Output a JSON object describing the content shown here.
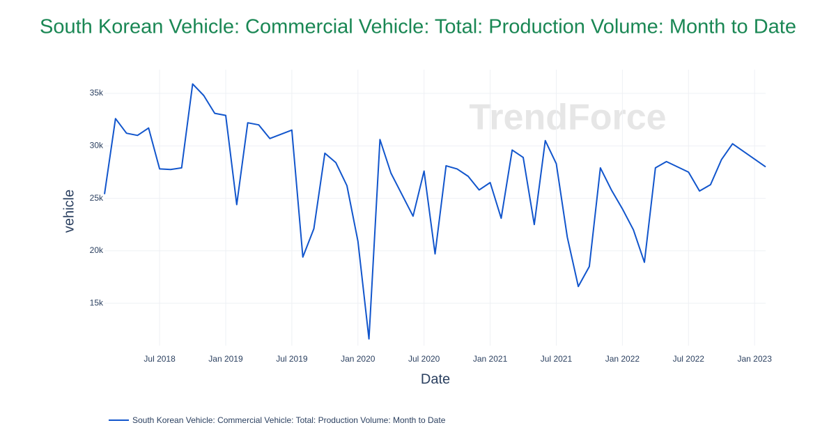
{
  "chart_data": {
    "type": "line",
    "title": "South Korean Vehicle: Commercial Vehicle: Total: Production Volume: Month to Date",
    "x_label": "Date",
    "y_label": "vehicle",
    "watermark": "TrendForce",
    "x": [
      "2018-02",
      "2018-03",
      "2018-04",
      "2018-05",
      "2018-06",
      "2018-07",
      "2018-08",
      "2018-09",
      "2018-10",
      "2018-11",
      "2018-12",
      "2019-01",
      "2019-02",
      "2019-03",
      "2019-04",
      "2019-05",
      "2019-07",
      "2019-08",
      "2019-09",
      "2019-10",
      "2019-11",
      "2019-12",
      "2020-01",
      "2020-02",
      "2020-03",
      "2020-04",
      "2020-06",
      "2020-07",
      "2020-08",
      "2020-09",
      "2020-10",
      "2020-11",
      "2020-12",
      "2021-01",
      "2021-02",
      "2021-03",
      "2021-04",
      "2021-05",
      "2021-06",
      "2021-07",
      "2021-08",
      "2021-09",
      "2021-10",
      "2021-11",
      "2021-12",
      "2022-01",
      "2022-02",
      "2022-03",
      "2022-04",
      "2022-05",
      "2022-07",
      "2022-08",
      "2022-09",
      "2022-10",
      "2022-11",
      "2023-02"
    ],
    "series": [
      {
        "name": "South Korean Vehicle: Commercial Vehicle: Total: Production Volume: Month to Date",
        "color": "#1155cc",
        "values": [
          25400,
          32600,
          31200,
          31000,
          31700,
          27800,
          27750,
          27900,
          35900,
          34800,
          33100,
          32900,
          24400,
          32200,
          32000,
          30700,
          31500,
          19400,
          22100,
          29300,
          28400,
          26200,
          20900,
          11600,
          30600,
          27400,
          23300,
          27600,
          19700,
          28100,
          27800,
          27100,
          25800,
          26500,
          23100,
          29600,
          28900,
          22500,
          30500,
          28300,
          21300,
          16600,
          18500,
          27900,
          25800,
          24000,
          22000,
          18900,
          27900,
          28500,
          27500,
          25700,
          26300,
          28700,
          30200,
          28000
        ]
      }
    ],
    "xlim": [
      "2018-02",
      "2023-02"
    ],
    "xticks": [
      {
        "value": "2018-07",
        "label": "Jul 2018"
      },
      {
        "value": "2019-01",
        "label": "Jan 2019"
      },
      {
        "value": "2019-07",
        "label": "Jul 2019"
      },
      {
        "value": "2020-01",
        "label": "Jan 2020"
      },
      {
        "value": "2020-07",
        "label": "Jul 2020"
      },
      {
        "value": "2021-01",
        "label": "Jan 2021"
      },
      {
        "value": "2021-07",
        "label": "Jul 2021"
      },
      {
        "value": "2022-01",
        "label": "Jan 2022"
      },
      {
        "value": "2022-07",
        "label": "Jul 2022"
      },
      {
        "value": "2023-01",
        "label": "Jan 2023"
      }
    ],
    "ylim": [
      10960,
      37260
    ],
    "yticks": [
      {
        "value": 15000,
        "label": "15k"
      },
      {
        "value": 20000,
        "label": "20k"
      },
      {
        "value": 25000,
        "label": "25k"
      },
      {
        "value": 30000,
        "label": "30k"
      },
      {
        "value": 35000,
        "label": "35k"
      }
    ],
    "grid": true
  }
}
